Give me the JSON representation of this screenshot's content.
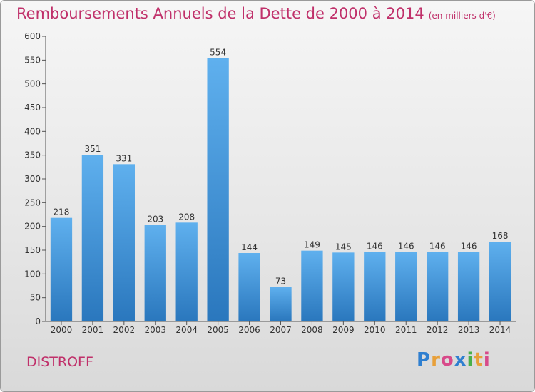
{
  "header": {
    "title": "Remboursements Annuels de la Dette de 2000 à 2014",
    "unit_note": "(en milliers d'€)"
  },
  "footer": {
    "commune": "DISTROFF",
    "logo_text": "Proxiti"
  },
  "colors": {
    "title": "#c0306a",
    "bar_top": "#5fb0ee",
    "bar_bottom": "#2a77bd"
  },
  "chart_data": {
    "type": "bar",
    "title": "Remboursements Annuels de la Dette de 2000 à 2014",
    "subtitle": "(en milliers d'€)",
    "categories": [
      "2000",
      "2001",
      "2002",
      "2003",
      "2004",
      "2005",
      "2006",
      "2007",
      "2008",
      "2009",
      "2010",
      "2011",
      "2012",
      "2013",
      "2014"
    ],
    "values": [
      218,
      351,
      331,
      203,
      208,
      554,
      144,
      73,
      149,
      145,
      146,
      146,
      146,
      146,
      168
    ],
    "data_labels": [
      "218",
      "351",
      "331",
      "203",
      "208",
      "554",
      "144",
      "73",
      "149",
      "145",
      "146",
      "146",
      "146",
      "146",
      "168"
    ],
    "yticks": [
      0,
      50,
      100,
      150,
      200,
      250,
      300,
      350,
      400,
      450,
      500,
      550,
      600
    ],
    "ylim": [
      0,
      600
    ],
    "grid": false,
    "legend": "none"
  }
}
